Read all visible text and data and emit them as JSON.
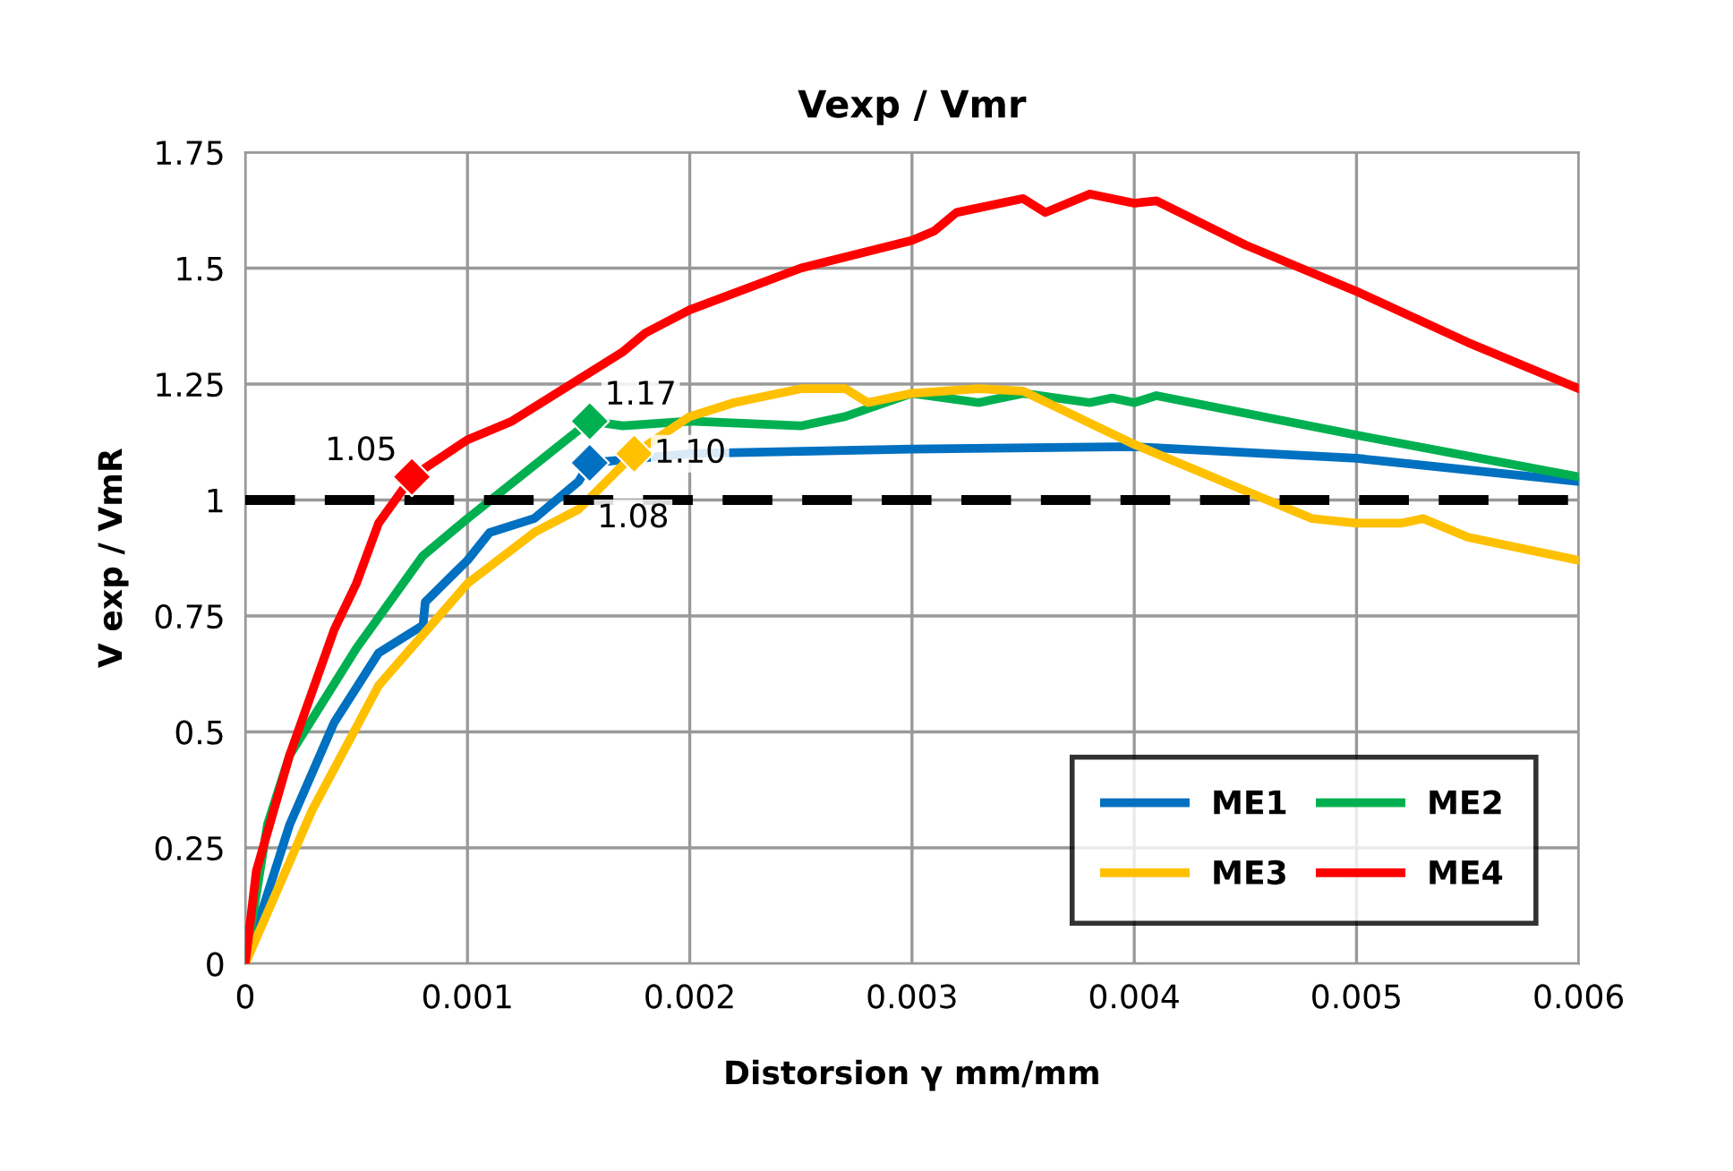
{
  "chart_data": {
    "type": "line",
    "title": "Vexp / Vmr",
    "xlabel": "Distorsion γ mm/mm",
    "ylabel": "V exp / VmR",
    "xlim": [
      0,
      0.006
    ],
    "xticks": [
      0,
      0.001,
      0.002,
      0.003,
      0.004,
      0.005,
      0.006
    ],
    "ylim": [
      0,
      1.75
    ],
    "yticks": [
      0,
      0.25,
      0.5,
      0.75,
      1,
      1.25,
      1.5,
      1.75
    ],
    "grid": true,
    "legend": "bottom right",
    "marker": "none",
    "line_style": "solid",
    "ref_lines": [
      {
        "axis": "y",
        "value": 1,
        "color": "#000000",
        "line_style": "dashed"
      }
    ],
    "series": [
      {
        "name": "ME1",
        "color": "#0070c0",
        "x": [
          0,
          0.0002,
          0.0004,
          0.0006,
          0.0008,
          0.00081,
          0.001,
          0.0011,
          0.0013,
          0.0014,
          0.0015,
          0.00155,
          0.002,
          0.003,
          0.004,
          0.005,
          0.006
        ],
        "values": [
          0,
          0.3,
          0.52,
          0.67,
          0.73,
          0.78,
          0.87,
          0.93,
          0.96,
          1.0,
          1.04,
          1.08,
          1.1,
          1.11,
          1.115,
          1.09,
          1.04
        ]
      },
      {
        "name": "ME2",
        "color": "#00b050",
        "x": [
          0,
          0.0001,
          0.0002,
          0.0005,
          0.0008,
          0.001,
          0.00155,
          0.0017,
          0.002,
          0.0025,
          0.0027,
          0.003,
          0.0033,
          0.0035,
          0.0038,
          0.0039,
          0.004,
          0.0041,
          0.005,
          0.006
        ],
        "values": [
          0,
          0.3,
          0.45,
          0.68,
          0.88,
          0.96,
          1.17,
          1.16,
          1.17,
          1.16,
          1.18,
          1.23,
          1.21,
          1.23,
          1.21,
          1.22,
          1.21,
          1.225,
          1.14,
          1.05
        ]
      },
      {
        "name": "ME3",
        "color": "#ffc000",
        "x": [
          0,
          0.0003,
          0.0006,
          0.001,
          0.0013,
          0.0015,
          0.00175,
          0.002,
          0.0022,
          0.0025,
          0.0027,
          0.0028,
          0.003,
          0.0033,
          0.0035,
          0.004,
          0.0045,
          0.0048,
          0.005,
          0.0052,
          0.0053,
          0.0055,
          0.006
        ],
        "values": [
          0,
          0.33,
          0.6,
          0.82,
          0.93,
          0.98,
          1.1,
          1.18,
          1.21,
          1.24,
          1.24,
          1.21,
          1.23,
          1.24,
          1.235,
          1.12,
          1.02,
          0.96,
          0.95,
          0.95,
          0.96,
          0.92,
          0.87
        ]
      },
      {
        "name": "ME4",
        "color": "#ff0000",
        "x": [
          0,
          5e-05,
          0.0002,
          0.0004,
          0.0005,
          0.0006,
          0.00075,
          0.001,
          0.0012,
          0.0015,
          0.0017,
          0.0018,
          0.002,
          0.0025,
          0.003,
          0.0031,
          0.0032,
          0.0035,
          0.0036,
          0.0038,
          0.004,
          0.0041,
          0.0045,
          0.005,
          0.0055,
          0.006
        ],
        "values": [
          0,
          0.2,
          0.45,
          0.72,
          0.82,
          0.95,
          1.05,
          1.13,
          1.17,
          1.26,
          1.32,
          1.36,
          1.41,
          1.5,
          1.56,
          1.58,
          1.62,
          1.65,
          1.62,
          1.66,
          1.64,
          1.645,
          1.55,
          1.45,
          1.34,
          1.24
        ]
      },
      {
        "type": "scatter",
        "marker": "diamond",
        "color": "#0070c0",
        "x": [
          0.00155
        ],
        "values": [
          1.08
        ],
        "value_labels": [
          "1.08"
        ]
      },
      {
        "type": "scatter",
        "marker": "diamond",
        "color": "#00b050",
        "x": [
          0.00155
        ],
        "values": [
          1.17
        ],
        "value_labels": [
          "1.17"
        ]
      },
      {
        "type": "scatter",
        "marker": "diamond",
        "color": "#ffc000",
        "x": [
          0.00175
        ],
        "values": [
          1.1
        ],
        "value_labels": [
          "1.10"
        ]
      },
      {
        "type": "scatter",
        "marker": "diamond",
        "color": "#ff0000",
        "x": [
          0.00075
        ],
        "values": [
          1.05
        ],
        "value_labels": [
          "1.05"
        ]
      }
    ]
  }
}
